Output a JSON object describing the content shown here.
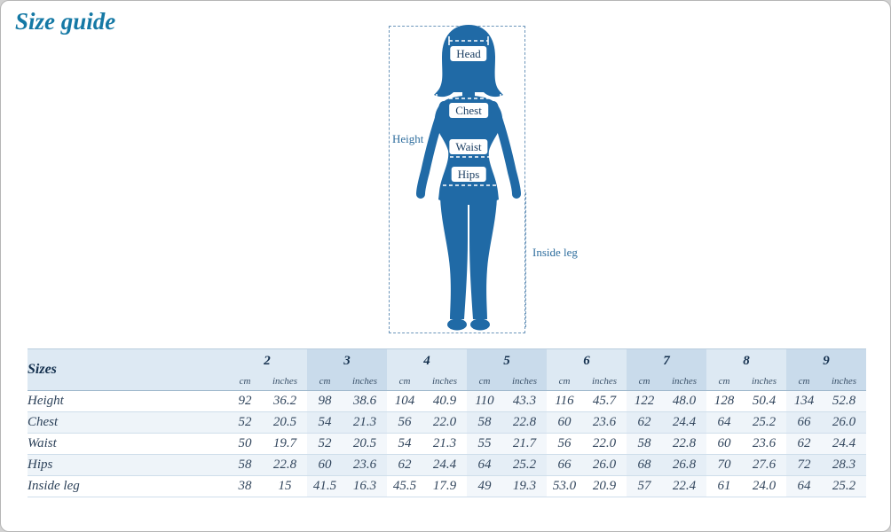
{
  "page": {
    "title": "Size guide"
  },
  "colors": {
    "title": "#1579a5",
    "figure": "#206aa6",
    "header_light": "#dde9f3",
    "header_dark": "#c9dbeb",
    "stripe": "#eef4f9"
  },
  "figure": {
    "labels": {
      "head": "Head",
      "chest": "Chest",
      "waist": "Waist",
      "hips": "Hips",
      "height": "Height",
      "inside_leg": "Inside leg"
    }
  },
  "table": {
    "header_label": "Sizes",
    "unit_cm": "cm",
    "unit_inches": "inches",
    "sizes": [
      "2",
      "3",
      "4",
      "5",
      "6",
      "7",
      "8",
      "9"
    ],
    "rows": [
      {
        "label": "Height",
        "cm": [
          "92",
          "98",
          "104",
          "110",
          "116",
          "122",
          "128",
          "134"
        ],
        "inches": [
          "36.2",
          "38.6",
          "40.9",
          "43.3",
          "45.7",
          "48.0",
          "50.4",
          "52.8"
        ]
      },
      {
        "label": "Chest",
        "cm": [
          "52",
          "54",
          "56",
          "58",
          "60",
          "62",
          "64",
          "66"
        ],
        "inches": [
          "20.5",
          "21.3",
          "22.0",
          "22.8",
          "23.6",
          "24.4",
          "25.2",
          "26.0"
        ]
      },
      {
        "label": "Waist",
        "cm": [
          "50",
          "52",
          "54",
          "55",
          "56",
          "58",
          "60",
          "62"
        ],
        "inches": [
          "19.7",
          "20.5",
          "21.3",
          "21.7",
          "22.0",
          "22.8",
          "23.6",
          "24.4"
        ]
      },
      {
        "label": "Hips",
        "cm": [
          "58",
          "60",
          "62",
          "64",
          "66",
          "68",
          "70",
          "72"
        ],
        "inches": [
          "22.8",
          "23.6",
          "24.4",
          "25.2",
          "26.0",
          "26.8",
          "27.6",
          "28.3"
        ]
      },
      {
        "label": "Inside leg",
        "cm": [
          "38",
          "41.5",
          "45.5",
          "49",
          "53.0",
          "57",
          "61",
          "64"
        ],
        "inches": [
          "15",
          "16.3",
          "17.9",
          "19.3",
          "20.9",
          "22.4",
          "24.0",
          "25.2"
        ]
      }
    ]
  }
}
